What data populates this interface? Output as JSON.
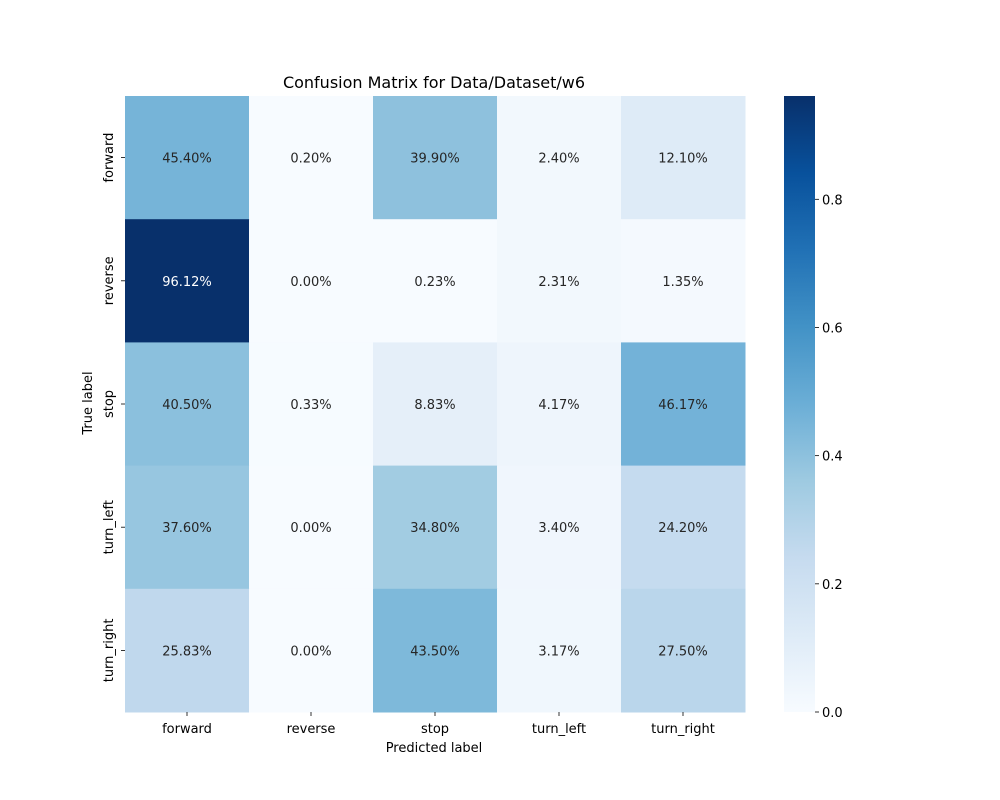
{
  "chart_data": {
    "type": "heatmap",
    "title": "Confusion Matrix for Data/Dataset/w6",
    "xlabel": "Predicted label",
    "ylabel": "True label",
    "x_categories": [
      "forward",
      "reverse",
      "stop",
      "turn_left",
      "turn_right"
    ],
    "y_categories": [
      "forward",
      "reverse",
      "stop",
      "turn_left",
      "turn_right"
    ],
    "values": [
      [
        0.454,
        0.002,
        0.399,
        0.024,
        0.121
      ],
      [
        0.9612,
        0.0,
        0.0023,
        0.0231,
        0.0135
      ],
      [
        0.405,
        0.0033,
        0.0883,
        0.0417,
        0.4617
      ],
      [
        0.376,
        0.0,
        0.348,
        0.034,
        0.242
      ],
      [
        0.2583,
        0.0,
        0.435,
        0.0317,
        0.275
      ]
    ],
    "cell_labels": [
      [
        "45.40%",
        "0.20%",
        "39.90%",
        "2.40%",
        "12.10%"
      ],
      [
        "96.12%",
        "0.00%",
        "0.23%",
        "2.31%",
        "1.35%"
      ],
      [
        "40.50%",
        "0.33%",
        "8.83%",
        "4.17%",
        "46.17%"
      ],
      [
        "37.60%",
        "0.00%",
        "34.80%",
        "3.40%",
        "24.20%"
      ],
      [
        "25.83%",
        "0.00%",
        "43.50%",
        "3.17%",
        "27.50%"
      ]
    ],
    "colormap": "Blues",
    "vmin": 0.0,
    "vmax": 0.9612,
    "colorbar_ticks": [
      0.0,
      0.2,
      0.4,
      0.6,
      0.8
    ],
    "colorbar_tick_labels": [
      "0.0",
      "0.2",
      "0.4",
      "0.6",
      "0.8"
    ],
    "colors": {
      "cmap_low": "#f7fbff",
      "cmap_high": "#08306b",
      "text_dark": "#262626",
      "text_light": "#ffffff"
    }
  }
}
